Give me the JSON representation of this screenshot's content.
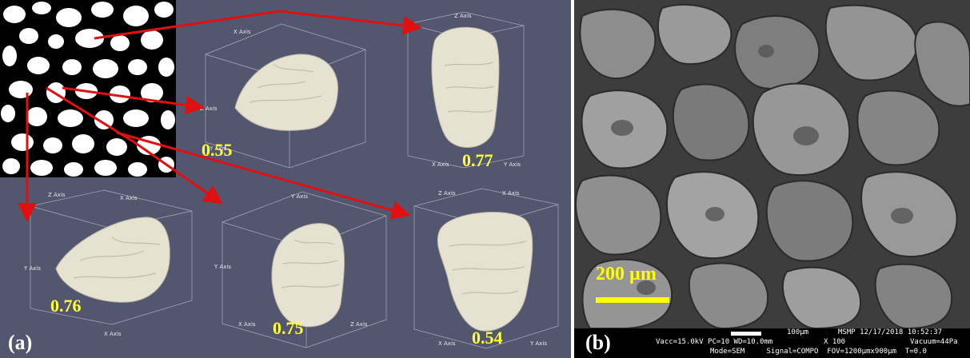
{
  "panel_a": {
    "label": "(a)",
    "shape_values": [
      "0.55",
      "0.77",
      "0.76",
      "0.75",
      "0.54"
    ],
    "axis_labels": {
      "x": "X Axis",
      "y": "Y Axis",
      "z": "Z Axis"
    },
    "colors": {
      "background": "#52566f",
      "particle": "#e6e2d2",
      "arrow": "#e01010",
      "value_text": "#ffff33"
    }
  },
  "panel_b": {
    "label": "(b)",
    "scale_label": "200 µm",
    "micro_scale": "100µm",
    "sem_info": {
      "instrument": "MSMP 12/17/2018 10:52:37",
      "line1_left": "Vacc=15.0kV PC=10 WD=10.0mm",
      "magnification": "X 100",
      "vacuum": "Vacuum=44Pa",
      "line2": "Mode=SEM     Signal=COMPO  FOV=1200µmx900µm  T=0.0"
    },
    "colors": {
      "scale": "#ffff00",
      "footer": "#000000"
    }
  }
}
